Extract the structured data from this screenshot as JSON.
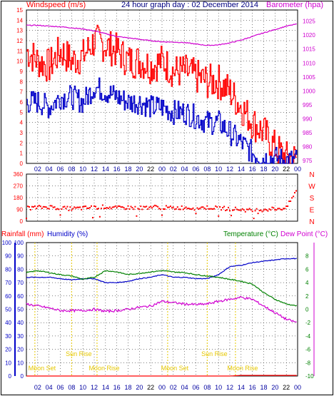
{
  "title": "24 hour graph day : 02 December 2014",
  "colors": {
    "red": "#ff0000",
    "blue": "#0000c8",
    "magenta": "#d000d0",
    "green": "#008000",
    "purple": "#7000a0",
    "yellow": "#e6c800",
    "ink": "#000000"
  },
  "x_ticks": [
    "02",
    "04",
    "06",
    "08",
    "10",
    "12",
    "14",
    "16",
    "18",
    "20",
    "22",
    "00",
    "02",
    "04",
    "06",
    "08",
    "10",
    "12",
    "14",
    "16",
    "18",
    "20",
    "22",
    "00"
  ],
  "chart_data": [
    {
      "type": "line",
      "name": "wind-barometer",
      "ylabel_left": "Windspeed (m/s)",
      "ylabel_right": "Barometer (hpa)",
      "left_ticks": [
        "0",
        "1",
        "2",
        "3",
        "4",
        "5",
        "6",
        "7",
        "8",
        "9",
        "10",
        "11",
        "12",
        "13",
        "14",
        "15"
      ],
      "right_ticks": [
        "975",
        "980",
        "985",
        "990",
        "995",
        "1000",
        "1005",
        "1010",
        "1015",
        "1020",
        "1025"
      ],
      "ylim_left": [
        0,
        15
      ],
      "ylim_right": [
        974,
        1029
      ],
      "x": [
        0,
        2,
        4,
        6,
        8,
        10,
        12,
        14,
        16,
        18,
        20,
        22,
        24,
        26,
        28,
        30,
        32,
        34,
        36,
        38,
        40,
        42,
        44,
        46,
        48
      ],
      "series": [
        {
          "key": "gust",
          "color": "red",
          "axis": "left",
          "values": [
            11,
            10,
            9.5,
            11,
            10,
            10.5,
            12,
            11.5,
            11,
            10,
            10,
            9.5,
            10,
            9,
            9,
            8.5,
            8,
            8,
            7,
            5.5,
            4,
            3,
            1.5,
            0.5,
            0.5
          ]
        },
        {
          "key": "windspeed",
          "color": "blue",
          "axis": "left",
          "values": [
            6,
            6,
            5.5,
            6.5,
            6.5,
            6,
            7.5,
            7,
            6.5,
            6,
            6,
            5.5,
            5.5,
            5,
            5,
            4.5,
            4,
            4,
            3,
            2,
            1,
            0.5,
            0.5,
            0.3,
            0.3
          ]
        },
        {
          "key": "barometer",
          "color": "magenta",
          "axis": "right",
          "values": [
            1023.5,
            1023.5,
            1023.2,
            1023,
            1022.6,
            1022.2,
            1021.5,
            1020.5,
            1019.5,
            1019,
            1018.5,
            1018,
            1017.6,
            1017.5,
            1017.3,
            1016.8,
            1016.3,
            1016.5,
            1017.2,
            1018.2,
            1019.5,
            1020.8,
            1022,
            1023.2,
            1024
          ]
        }
      ]
    },
    {
      "type": "scatter",
      "name": "wind-direction",
      "left_ticks": [
        "0",
        "90",
        "180",
        "270",
        "360"
      ],
      "right_labels": [
        "N",
        "W",
        "S",
        "E",
        "N"
      ],
      "ylim": [
        0,
        360
      ],
      "x": [
        0,
        2,
        4,
        6,
        8,
        10,
        12,
        14,
        16,
        18,
        20,
        22,
        24,
        26,
        28,
        30,
        32,
        34,
        36,
        38,
        40,
        42,
        44,
        46,
        48
      ],
      "values": [
        100,
        105,
        110,
        100,
        95,
        100,
        105,
        110,
        100,
        105,
        100,
        110,
        105,
        100,
        105,
        100,
        105,
        100,
        95,
        90,
        80,
        90,
        95,
        100,
        250
      ]
    },
    {
      "type": "line",
      "name": "temperature-humidity",
      "ylabel_left_1": "Rainfall (mm)",
      "ylabel_left_2": "Humidity (%)",
      "ylabel_right_1": "Temperature (°C)",
      "ylabel_right_2": "Dew Point (°C)",
      "left_ticks": [
        "0",
        "10",
        "20",
        "30",
        "40",
        "50",
        "60",
        "70",
        "80",
        "90",
        "100"
      ],
      "right_ticks": [
        "-10",
        "-8",
        "-6",
        "-4",
        "-2",
        "0",
        "2",
        "4",
        "6",
        "8"
      ],
      "ylim_left": [
        0,
        100
      ],
      "ylim_right": [
        -10,
        10
      ],
      "x": [
        0,
        2,
        4,
        6,
        8,
        10,
        12,
        14,
        16,
        18,
        20,
        22,
        24,
        26,
        28,
        30,
        32,
        34,
        36,
        38,
        40,
        42,
        44,
        46,
        48
      ],
      "series": [
        {
          "key": "humidity",
          "color": "blue",
          "axis": "left",
          "values": [
            74,
            74,
            74,
            73,
            72,
            73,
            73,
            70,
            70,
            71,
            73,
            74,
            76,
            74,
            74,
            73,
            73,
            76,
            82,
            83,
            85,
            86,
            87,
            88,
            88
          ]
        },
        {
          "key": "temperature",
          "color": "green",
          "axis": "right",
          "values": [
            5.5,
            5.8,
            5.5,
            5.2,
            5,
            4.5,
            4.8,
            5.8,
            5.6,
            5.2,
            5.4,
            5.6,
            5.8,
            5.6,
            5.5,
            5.2,
            5,
            4.8,
            4.5,
            4.2,
            3.8,
            2.5,
            1.5,
            0.8,
            0.5
          ]
        },
        {
          "key": "dew-point",
          "color": "magenta",
          "axis": "right",
          "values": [
            0.8,
            0.5,
            0.2,
            -0.2,
            -0.2,
            -0.2,
            0,
            -0.3,
            -0.2,
            0,
            0.3,
            0.5,
            1.2,
            1,
            0.8,
            0.7,
            0.8,
            1.2,
            1.5,
            1.8,
            1.5,
            0.5,
            -0.5,
            -1.5,
            -2
          ]
        },
        {
          "key": "rainfall",
          "color": "red",
          "axis": "left",
          "values": [
            0,
            0,
            0,
            0,
            0,
            0,
            0,
            0,
            0,
            0,
            0,
            0,
            0,
            0,
            0,
            0,
            0,
            0,
            0,
            0.5,
            0.5,
            0.5,
            0.5,
            0.5,
            0.5
          ]
        }
      ],
      "events": [
        {
          "label": "Moon Set",
          "x": 1.5,
          "row": "low"
        },
        {
          "label": "Sun Rise",
          "x": 8,
          "row": "high"
        },
        {
          "label": "Moon Rise",
          "x": 12.5,
          "row": "low"
        },
        {
          "label": "Moon Set",
          "x": 25,
          "row": "low"
        },
        {
          "label": "Sun Rise",
          "x": 32,
          "row": "high"
        },
        {
          "label": "Moon Rise",
          "x": 37,
          "row": "low"
        }
      ]
    }
  ]
}
